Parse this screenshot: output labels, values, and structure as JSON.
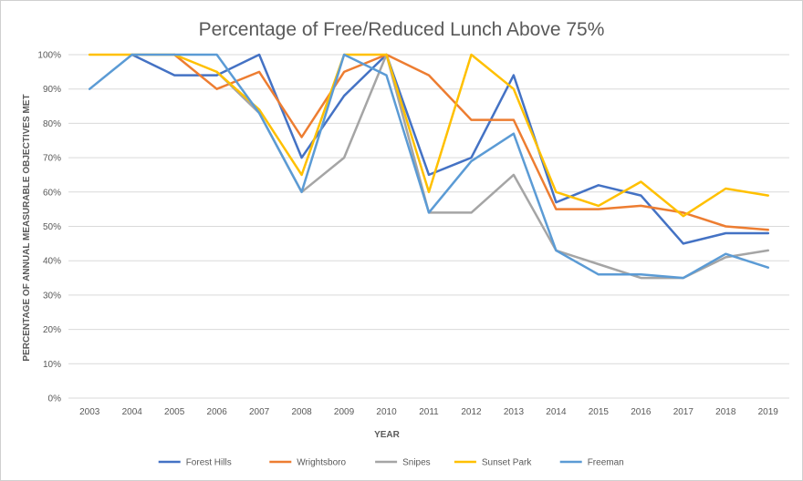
{
  "chart_data": {
    "type": "line",
    "title": "Percentage of Free/Reduced Lunch Above 75%",
    "xlabel": "YEAR",
    "ylabel": "PERCENTAGE OF ANNUAL MEASURABLE OBJECTIVES MET",
    "categories": [
      "2003",
      "2004",
      "2005",
      "2006",
      "2007",
      "2008",
      "2009",
      "2010",
      "2011",
      "2012",
      "2013",
      "2014",
      "2015",
      "2016",
      "2017",
      "2018",
      "2019"
    ],
    "y_ticks": [
      "0%",
      "10%",
      "20%",
      "30%",
      "40%",
      "50%",
      "60%",
      "70%",
      "80%",
      "90%",
      "100%"
    ],
    "ylim": [
      0,
      100
    ],
    "grid": true,
    "legend_position": "bottom",
    "series": [
      {
        "name": "Forest Hills",
        "color": "#4472C4",
        "values": [
          null,
          100,
          94,
          94,
          100,
          70,
          88,
          100,
          65,
          70,
          94,
          57,
          62,
          59,
          45,
          48,
          48
        ]
      },
      {
        "name": "Wrightsboro",
        "color": "#ED7D31",
        "values": [
          null,
          null,
          100,
          90,
          95,
          76,
          95,
          100,
          94,
          81,
          81,
          55,
          55,
          56,
          54,
          50,
          49
        ]
      },
      {
        "name": "Snipes",
        "color": "#A5A5A5",
        "values": [
          null,
          null,
          null,
          95,
          83,
          60,
          70,
          100,
          54,
          54,
          65,
          43,
          39,
          35,
          35,
          41,
          43
        ]
      },
      {
        "name": "Sunset Park",
        "color": "#FFC000",
        "values": [
          100,
          100,
          100,
          95,
          84,
          65,
          100,
          100,
          60,
          100,
          90,
          60,
          56,
          63,
          53,
          61,
          59
        ]
      },
      {
        "name": "Freeman",
        "color": "#5B9BD5",
        "values": [
          90,
          100,
          100,
          100,
          83,
          60,
          100,
          94,
          54,
          69,
          77,
          43,
          36,
          36,
          35,
          42,
          38
        ]
      }
    ]
  }
}
